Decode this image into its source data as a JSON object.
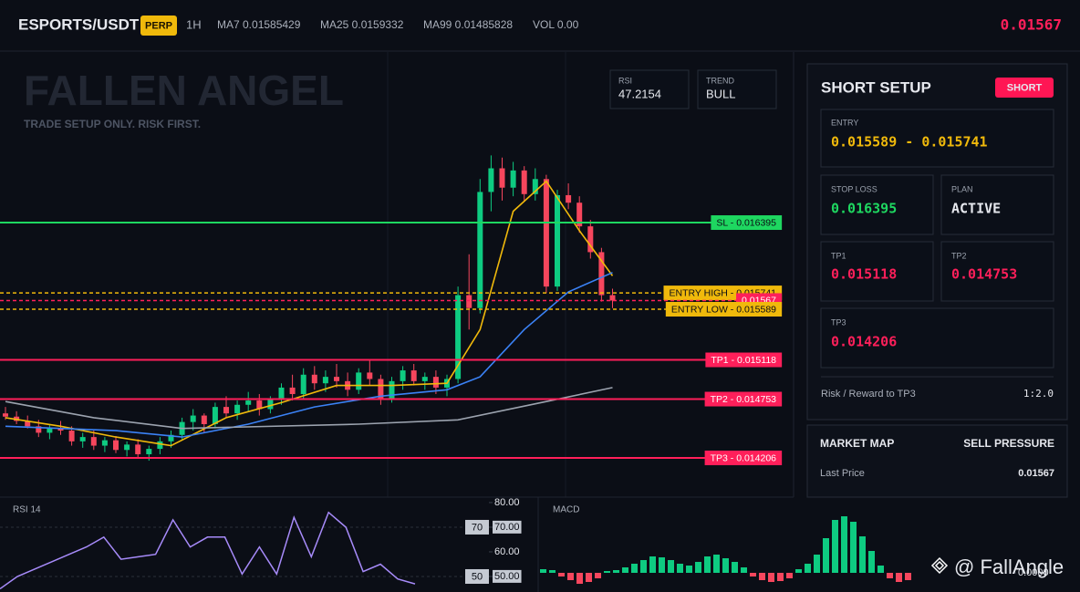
{
  "header": {
    "symbol": "ESPORTS/USDT",
    "badge": "PERP",
    "interval": "1H",
    "ma7": "MA7 0.01585429",
    "ma25": "MA25 0.0159332",
    "ma99": "MA99 0.01485828",
    "vol": "VOL 0.00",
    "price": "0.01567"
  },
  "overlay": {
    "title": "FALLEN ANGEL",
    "subtitle": "TRADE SETUP ONLY. RISK FIRST.",
    "rsi_label": "RSI",
    "rsi_value": "47.2154",
    "trend_label": "TREND",
    "trend_value": "BULL"
  },
  "price_chart": {
    "type": "candlestick",
    "ylim": [
      0.013841,
      0.017982
    ],
    "up_color": "#0ecb81",
    "down_color": "#f6465d",
    "candles": [
      [
        0.01462,
        0.01468,
        0.01456,
        0.01459
      ],
      [
        0.01459,
        0.01464,
        0.01452,
        0.01455
      ],
      [
        0.01455,
        0.0146,
        0.01448,
        0.0145
      ],
      [
        0.0145,
        0.01456,
        0.0144,
        0.01444
      ],
      [
        0.01444,
        0.01452,
        0.01438,
        0.01448
      ],
      [
        0.01448,
        0.01455,
        0.01442,
        0.01446
      ],
      [
        0.01446,
        0.0145,
        0.01432,
        0.01436
      ],
      [
        0.01436,
        0.01444,
        0.0143,
        0.0144
      ],
      [
        0.0144,
        0.01446,
        0.01428,
        0.01432
      ],
      [
        0.01432,
        0.0144,
        0.01426,
        0.01437
      ],
      [
        0.01437,
        0.01441,
        0.01425,
        0.01428
      ],
      [
        0.01428,
        0.01436,
        0.01422,
        0.01433
      ],
      [
        0.01433,
        0.01438,
        0.0142,
        0.01424
      ],
      [
        0.01424,
        0.01432,
        0.01418,
        0.01429
      ],
      [
        0.01429,
        0.0144,
        0.01424,
        0.01436
      ],
      [
        0.01436,
        0.01446,
        0.0143,
        0.01442
      ],
      [
        0.01442,
        0.01458,
        0.01438,
        0.01454
      ],
      [
        0.01454,
        0.01466,
        0.01446,
        0.0146
      ],
      [
        0.0146,
        0.01462,
        0.01444,
        0.01452
      ],
      [
        0.01452,
        0.01472,
        0.01448,
        0.01468
      ],
      [
        0.01468,
        0.01478,
        0.01458,
        0.01462
      ],
      [
        0.01462,
        0.01474,
        0.01456,
        0.0147
      ],
      [
        0.0147,
        0.01482,
        0.01464,
        0.01474
      ],
      [
        0.01474,
        0.0148,
        0.0146,
        0.01466
      ],
      [
        0.01466,
        0.01478,
        0.01462,
        0.01476
      ],
      [
        0.01476,
        0.0149,
        0.0147,
        0.01486
      ],
      [
        0.01486,
        0.01498,
        0.01474,
        0.0148
      ],
      [
        0.0148,
        0.01504,
        0.01476,
        0.01498
      ],
      [
        0.01498,
        0.01506,
        0.01484,
        0.0149
      ],
      [
        0.0149,
        0.01502,
        0.01482,
        0.01496
      ],
      [
        0.01496,
        0.01508,
        0.01486,
        0.01492
      ],
      [
        0.01492,
        0.015,
        0.01478,
        0.01484
      ],
      [
        0.01484,
        0.01504,
        0.0148,
        0.015
      ],
      [
        0.015,
        0.01512,
        0.01488,
        0.01494
      ],
      [
        0.01494,
        0.01498,
        0.0147,
        0.01476
      ],
      [
        0.01476,
        0.01496,
        0.01472,
        0.01492
      ],
      [
        0.01492,
        0.01506,
        0.01484,
        0.01502
      ],
      [
        0.01502,
        0.01508,
        0.01488,
        0.01492
      ],
      [
        0.01492,
        0.015,
        0.01484,
        0.01496
      ],
      [
        0.01496,
        0.01502,
        0.0148,
        0.01486
      ],
      [
        0.01486,
        0.01498,
        0.01478,
        0.01494
      ],
      [
        0.01494,
        0.0158,
        0.0149,
        0.01572
      ],
      [
        0.01572,
        0.0161,
        0.0154,
        0.0156
      ],
      [
        0.0156,
        0.0168,
        0.01555,
        0.01668
      ],
      [
        0.01668,
        0.01702,
        0.0165,
        0.0169
      ],
      [
        0.0169,
        0.017,
        0.0166,
        0.01672
      ],
      [
        0.01672,
        0.01696,
        0.01664,
        0.01688
      ],
      [
        0.01688,
        0.01692,
        0.0166,
        0.01666
      ],
      [
        0.01666,
        0.0169,
        0.0166,
        0.0168
      ],
      [
        0.0168,
        0.01684,
        0.01574,
        0.0158
      ],
      [
        0.0158,
        0.0167,
        0.01576,
        0.01665
      ],
      [
        0.01665,
        0.01676,
        0.01652,
        0.01658
      ],
      [
        0.01658,
        0.01664,
        0.0163,
        0.01636
      ],
      [
        0.01636,
        0.01642,
        0.01606,
        0.01612
      ],
      [
        0.01612,
        0.01616,
        0.01566,
        0.01572
      ],
      [
        0.01572,
        0.01578,
        0.0156,
        0.01567
      ]
    ],
    "ma_lines": [
      {
        "color": "#f0b90b",
        "x": [
          0,
          5,
          10,
          15,
          20,
          25,
          30,
          35,
          40,
          43,
          46,
          49,
          52,
          55
        ],
        "values": [
          0.01458,
          0.0145,
          0.0144,
          0.01432,
          0.01458,
          0.01472,
          0.01488,
          0.01488,
          0.0149,
          0.0154,
          0.0165,
          0.01678,
          0.01632,
          0.0159
        ]
      },
      {
        "color": "#3b82f6",
        "x": [
          0,
          10,
          16,
          22,
          28,
          34,
          40,
          43,
          47,
          51,
          55
        ],
        "values": [
          0.0145,
          0.01446,
          0.0144,
          0.01452,
          0.01468,
          0.01478,
          0.01484,
          0.01496,
          0.0154,
          0.01575,
          0.01593
        ]
      },
      {
        "color": "#9ca3af",
        "x": [
          0,
          8,
          16,
          32,
          41,
          49,
          55
        ],
        "values": [
          0.01473,
          0.01458,
          0.01448,
          0.01452,
          0.01456,
          0.01473,
          0.01486
        ]
      }
    ],
    "levels": [
      {
        "label": "SL - 0.016395",
        "value": 0.016395,
        "color": "#1ed760",
        "text_color": "#0b0e16",
        "dashed": false
      },
      {
        "label": "ENTRY HIGH - 0.015741",
        "value": 0.015741,
        "color": "#f0b90b",
        "text_color": "#0b0e16",
        "dashed": true
      },
      {
        "value": 0.01567,
        "color": "#ff1f5a",
        "text_color": "#ffffff",
        "dashed": true
      },
      {
        "label": "ENTRY LOW - 0.015589",
        "value": 0.015589,
        "color": "#f0b90b",
        "text_color": "#0b0e16",
        "dashed": true
      },
      {
        "label": "TP1 - 0.015118",
        "value": 0.015118,
        "color": "#ff1f5a",
        "text_color": "#ffffff",
        "dashed": false
      },
      {
        "label": "TP2 - 0.014753",
        "value": 0.014753,
        "color": "#ff1f5a",
        "text_color": "#ffffff",
        "dashed": false
      },
      {
        "label": "TP3 - 0.014206",
        "value": 0.014206,
        "color": "#ff1f5a",
        "text_color": "#ffffff",
        "dashed": false
      }
    ]
  },
  "rsi_panel": {
    "type": "line",
    "title": "RSI 14",
    "color": "#a78bfa",
    "ylim": [
      43.7,
      82.2
    ],
    "yticks": [
      {
        "value": 80,
        "label": "80.00"
      },
      {
        "value": 70,
        "label": "70.00"
      },
      {
        "value": 60,
        "label": "60.00"
      },
      {
        "value": 50,
        "label": "50.00"
      }
    ],
    "levels": [
      70,
      50
    ],
    "values": [
      45,
      50,
      53,
      56,
      59,
      62,
      66,
      57,
      58,
      59,
      73,
      62,
      66,
      66,
      51,
      62,
      51,
      74,
      58,
      76,
      70,
      52,
      55,
      49,
      47
    ]
  },
  "macd_panel": {
    "type": "bar",
    "title": "MACD",
    "ylim": [
      -2.1e-05,
      8.3e-05
    ],
    "yticks": [
      {
        "value": 0,
        "label": "0.0000"
      }
    ],
    "up_color": "#0ecb81",
    "down_color": "#f6465d",
    "values": [
      4e-06,
      3e-06,
      -4e-06,
      -8e-06,
      -1.2e-05,
      -1e-05,
      -6e-06,
      2e-06,
      3e-06,
      6e-06,
      1e-05,
      1.4e-05,
      1.8e-05,
      1.7e-05,
      1.4e-05,
      1e-05,
      8e-06,
      1.2e-05,
      1.8e-05,
      2e-05,
      1.6e-05,
      1.2e-05,
      6e-06,
      -4e-06,
      -8e-06,
      -1e-05,
      -9e-06,
      -6e-06,
      4e-06,
      1e-05,
      2e-05,
      3.8e-05,
      5.8e-05,
      6.2e-05,
      5.6e-05,
      4e-05,
      2.4e-05,
      8e-06,
      -6e-06,
      -1e-05,
      -8e-06
    ]
  },
  "setup": {
    "title": "SHORT SETUP",
    "badge": "SHORT",
    "entry_label": "ENTRY",
    "entry": "0.015589 - 0.015741",
    "sl_label": "STOP LOSS",
    "sl": "0.016395",
    "plan_label": "PLAN",
    "plan": "ACTIVE",
    "tp1_label": "TP1",
    "tp1": "0.015118",
    "tp2_label": "TP2",
    "tp2": "0.014753",
    "tp3_label": "TP3",
    "tp3": "0.014206",
    "rr_label": "Risk / Reward to TP3",
    "rr": "1:2.0"
  },
  "market_map": {
    "title": "MARKET MAP",
    "status": "SELL PRESSURE",
    "last_label": "Last Price",
    "last": "0.01567"
  },
  "watermark": "@ FallAngle"
}
